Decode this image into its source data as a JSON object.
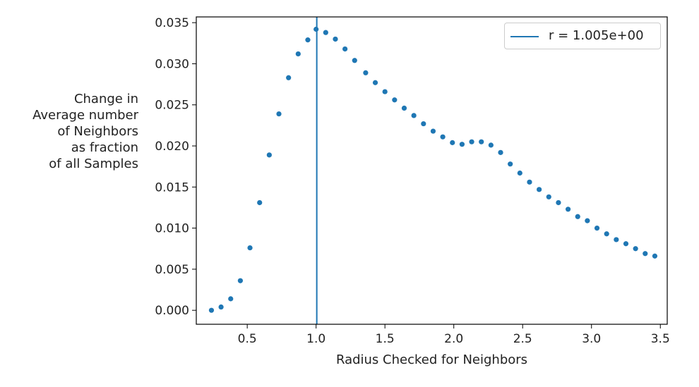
{
  "chart_data": {
    "type": "scatter",
    "xlabel": "Radius Checked for Neighbors",
    "ylabel_lines": [
      "Change in",
      "Average number",
      "of Neighbors",
      "as fraction",
      "of all Samples"
    ],
    "xlim": [
      0.13,
      3.55
    ],
    "ylim": [
      -0.0017,
      0.0357
    ],
    "xticks": [
      0.5,
      1.0,
      1.5,
      2.0,
      2.5,
      3.0,
      3.5
    ],
    "xtick_labels": [
      "0.5",
      "1.0",
      "1.5",
      "2.0",
      "2.5",
      "3.0",
      "3.5"
    ],
    "yticks": [
      0.0,
      0.005,
      0.01,
      0.015,
      0.02,
      0.025,
      0.03,
      0.035
    ],
    "ytick_labels": [
      "0.000",
      "0.005",
      "0.010",
      "0.015",
      "0.020",
      "0.025",
      "0.030",
      "0.035"
    ],
    "grid": false,
    "legend_position": "top-right",
    "vline": {
      "x": 1.005,
      "label": "r = 1.005e+00",
      "color": "#1f77b4"
    },
    "series": [
      {
        "color": "#1f77b4",
        "points": [
          [
            0.24,
            0.0
          ],
          [
            0.31,
            0.0004
          ],
          [
            0.38,
            0.0014
          ],
          [
            0.45,
            0.0036
          ],
          [
            0.52,
            0.0076
          ],
          [
            0.59,
            0.0131
          ],
          [
            0.66,
            0.0189
          ],
          [
            0.73,
            0.0239
          ],
          [
            0.8,
            0.0283
          ],
          [
            0.87,
            0.0312
          ],
          [
            0.94,
            0.0329
          ],
          [
            1.0,
            0.0342
          ],
          [
            1.07,
            0.0338
          ],
          [
            1.14,
            0.033
          ],
          [
            1.21,
            0.0318
          ],
          [
            1.28,
            0.0304
          ],
          [
            1.36,
            0.0289
          ],
          [
            1.43,
            0.0277
          ],
          [
            1.5,
            0.0266
          ],
          [
            1.57,
            0.0256
          ],
          [
            1.64,
            0.0246
          ],
          [
            1.71,
            0.0237
          ],
          [
            1.78,
            0.0227
          ],
          [
            1.85,
            0.0218
          ],
          [
            1.92,
            0.0211
          ],
          [
            1.99,
            0.0204
          ],
          [
            2.06,
            0.0202
          ],
          [
            2.13,
            0.0205
          ],
          [
            2.2,
            0.0205
          ],
          [
            2.27,
            0.0201
          ],
          [
            2.34,
            0.0192
          ],
          [
            2.41,
            0.0178
          ],
          [
            2.48,
            0.0167
          ],
          [
            2.55,
            0.0156
          ],
          [
            2.62,
            0.0147
          ],
          [
            2.69,
            0.0138
          ],
          [
            2.76,
            0.0131
          ],
          [
            2.83,
            0.0123
          ],
          [
            2.9,
            0.0114
          ],
          [
            2.97,
            0.0109
          ],
          [
            3.04,
            0.01
          ],
          [
            3.11,
            0.0093
          ],
          [
            3.18,
            0.0086
          ],
          [
            3.25,
            0.0081
          ],
          [
            3.32,
            0.0075
          ],
          [
            3.39,
            0.0069
          ],
          [
            3.46,
            0.0066
          ]
        ]
      }
    ]
  }
}
